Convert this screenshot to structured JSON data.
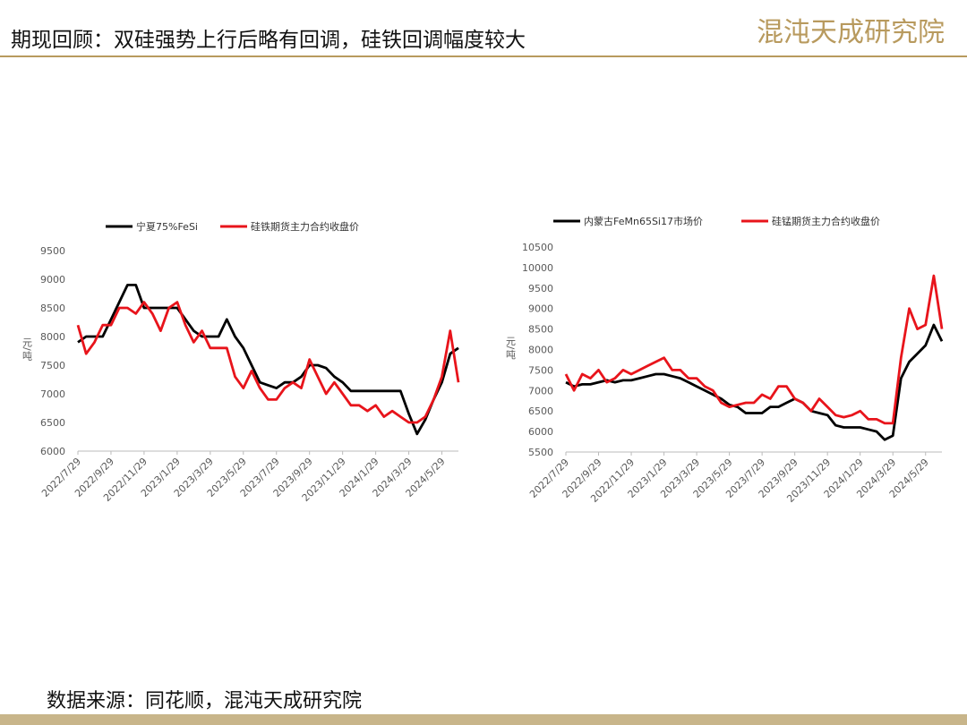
{
  "header": {
    "title": "期现回顾：双硅强势上行后略有回调，硅铁回调幅度较大",
    "logo": "混沌天成研究院"
  },
  "source": "数据来源：同花顺，混沌天成研究院",
  "chart_data": [
    {
      "type": "line",
      "y_label": "元/吨",
      "grid": false,
      "categories": [
        "2022/7/29",
        null,
        null,
        null,
        "2022/9/29",
        null,
        null,
        null,
        "2022/11/29",
        null,
        null,
        null,
        "2023/1/29",
        null,
        null,
        null,
        "2023/3/29",
        null,
        null,
        null,
        "2023/5/29",
        null,
        null,
        null,
        "2023/7/29",
        null,
        null,
        null,
        "2023/9/29",
        null,
        null,
        null,
        "2023/11/29",
        null,
        null,
        null,
        "2024/1/29",
        null,
        null,
        null,
        "2024/3/29",
        null,
        null,
        null,
        "2024/5/29",
        null,
        null
      ],
      "ylim": [
        6000,
        9500
      ],
      "yticks": [
        6000,
        6500,
        7000,
        7500,
        8000,
        8500,
        9000,
        9500
      ],
      "series": [
        {
          "name": "宁夏75%FeSi",
          "color": "#000000",
          "values": [
            7900,
            8000,
            8000,
            8000,
            8300,
            8600,
            8900,
            8900,
            8500,
            8500,
            8500,
            8500,
            8500,
            8300,
            8100,
            8000,
            8000,
            8000,
            8300,
            8000,
            7800,
            7500,
            7200,
            7150,
            7100,
            7200,
            7200,
            7300,
            7500,
            7500,
            7450,
            7300,
            7200,
            7050,
            7050,
            7050,
            7050,
            7050,
            7050,
            7050,
            6650,
            6300,
            6550,
            6900,
            7200,
            7700,
            7800
          ]
        },
        {
          "name": "硅铁期货主力合约收盘价",
          "color": "#e8141b",
          "values": [
            8200,
            7700,
            7900,
            8200,
            8200,
            8500,
            8500,
            8400,
            8600,
            8400,
            8100,
            8500,
            8600,
            8200,
            7900,
            8100,
            7800,
            7800,
            7800,
            7300,
            7100,
            7400,
            7100,
            6900,
            6900,
            7100,
            7200,
            7100,
            7600,
            7300,
            7000,
            7200,
            7000,
            6800,
            6800,
            6700,
            6800,
            6600,
            6700,
            6600,
            6500,
            6500,
            6600,
            6900,
            7300,
            8100,
            7200
          ]
        }
      ]
    },
    {
      "type": "line",
      "y_label": "元/吨",
      "grid": false,
      "categories": [
        "2022/7/29",
        null,
        null,
        null,
        "2022/9/29",
        null,
        null,
        null,
        "2022/11/29",
        null,
        null,
        null,
        "2023/1/29",
        null,
        null,
        null,
        "2023/3/29",
        null,
        null,
        null,
        "2023/5/29",
        null,
        null,
        null,
        "2023/7/29",
        null,
        null,
        null,
        "2023/9/29",
        null,
        null,
        null,
        "2023/11/29",
        null,
        null,
        null,
        "2024/1/29",
        null,
        null,
        null,
        "2024/3/29",
        null,
        null,
        null,
        "2024/5/29",
        null,
        null
      ],
      "ylim": [
        5500,
        10500
      ],
      "yticks": [
        5500,
        6000,
        6500,
        7000,
        7500,
        8000,
        8500,
        9000,
        9500,
        10000,
        10500
      ],
      "series": [
        {
          "name": "内蒙古FeMn65Si17市场价",
          "color": "#000000",
          "values": [
            7200,
            7100,
            7150,
            7150,
            7200,
            7250,
            7200,
            7250,
            7250,
            7300,
            7350,
            7400,
            7400,
            7350,
            7300,
            7200,
            7100,
            7000,
            6900,
            6800,
            6650,
            6600,
            6450,
            6450,
            6450,
            6600,
            6600,
            6700,
            6800,
            6700,
            6500,
            6450,
            6400,
            6150,
            6100,
            6100,
            6100,
            6050,
            6000,
            5800,
            5900,
            7300,
            7700,
            7900,
            8100,
            8600,
            8200
          ]
        },
        {
          "name": "硅锰期货主力合约收盘价",
          "color": "#e8141b",
          "values": [
            7400,
            7000,
            7400,
            7300,
            7500,
            7200,
            7300,
            7500,
            7400,
            7500,
            7600,
            7700,
            7800,
            7500,
            7500,
            7300,
            7300,
            7100,
            7000,
            6700,
            6600,
            6650,
            6700,
            6700,
            6900,
            6800,
            7100,
            7100,
            6800,
            6700,
            6500,
            6800,
            6600,
            6400,
            6350,
            6400,
            6500,
            6300,
            6300,
            6200,
            6200,
            7800,
            9000,
            8500,
            8600,
            9800,
            8500
          ]
        }
      ]
    }
  ]
}
